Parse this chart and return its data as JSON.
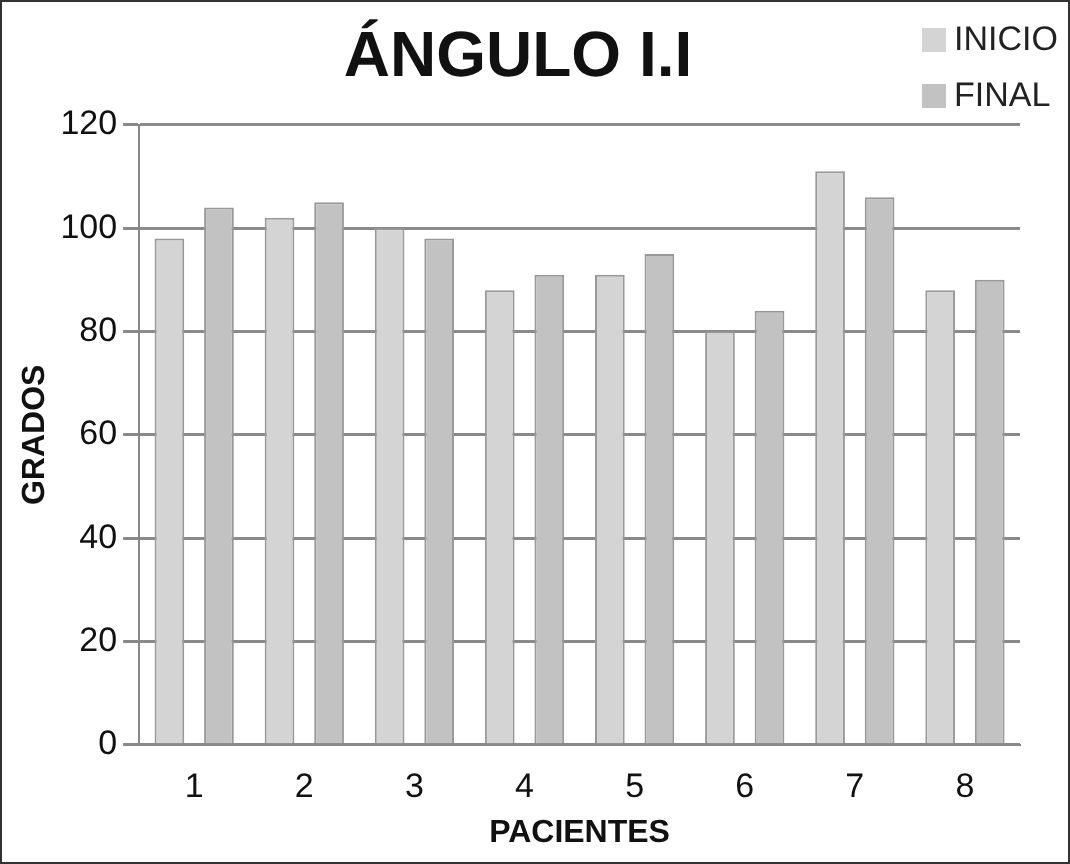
{
  "chart_data": {
    "type": "bar",
    "title": "ÁNGULO I.I",
    "xlabel": "PACIENTES",
    "ylabel": "GRADOS",
    "categories": [
      "1",
      "2",
      "3",
      "4",
      "5",
      "6",
      "7",
      "8"
    ],
    "series": [
      {
        "name": "INICIO",
        "color": "#d4d4d4",
        "values": [
          98,
          102,
          100,
          88,
          91,
          80,
          111,
          88
        ]
      },
      {
        "name": "FINAL",
        "color": "#c2c2c2",
        "values": [
          104,
          105,
          98,
          91,
          95,
          84,
          106,
          90
        ]
      }
    ],
    "ylim": [
      0,
      120
    ],
    "yticks": [
      0,
      20,
      40,
      60,
      80,
      100,
      120
    ],
    "grid": "y",
    "legend": "top right"
  }
}
